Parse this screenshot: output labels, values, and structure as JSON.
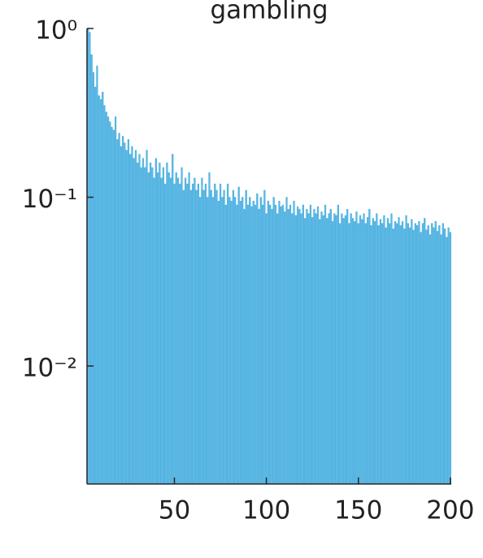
{
  "chart_data": {
    "type": "bar",
    "title": "gambling",
    "log_y": true,
    "color": "#5ab9e6",
    "x": [
      3,
      4,
      5,
      6,
      7,
      8,
      9,
      10,
      11,
      12,
      13,
      14,
      15,
      16,
      17,
      18,
      19,
      20,
      21,
      22,
      23,
      24,
      25,
      26,
      27,
      28,
      29,
      30,
      31,
      32,
      33,
      34,
      35,
      36,
      37,
      38,
      39,
      40,
      41,
      42,
      43,
      44,
      45,
      46,
      47,
      48,
      49,
      50,
      51,
      52,
      53,
      54,
      55,
      56,
      57,
      58,
      59,
      60,
      61,
      62,
      63,
      64,
      65,
      66,
      67,
      68,
      69,
      70,
      71,
      72,
      73,
      74,
      75,
      76,
      77,
      78,
      79,
      80,
      81,
      82,
      83,
      84,
      85,
      86,
      87,
      88,
      89,
      90,
      91,
      92,
      93,
      94,
      95,
      96,
      97,
      98,
      99,
      100,
      101,
      102,
      103,
      104,
      105,
      106,
      107,
      108,
      109,
      110,
      111,
      112,
      113,
      114,
      115,
      116,
      117,
      118,
      119,
      120,
      121,
      122,
      123,
      124,
      125,
      126,
      127,
      128,
      129,
      130,
      131,
      132,
      133,
      134,
      135,
      136,
      137,
      138,
      139,
      140,
      141,
      142,
      143,
      144,
      145,
      146,
      147,
      148,
      149,
      150,
      151,
      152,
      153,
      154,
      155,
      156,
      157,
      158,
      159,
      160,
      161,
      162,
      163,
      164,
      165,
      166,
      167,
      168,
      169,
      170,
      171,
      172,
      173,
      174,
      175,
      176,
      177,
      178,
      179,
      180,
      181,
      182,
      183,
      184,
      185,
      186,
      187,
      188,
      189,
      190,
      191,
      192,
      193,
      194,
      195,
      196,
      197,
      198,
      199,
      200
    ],
    "values": [
      1.0,
      0.95,
      0.7,
      0.55,
      0.45,
      0.6,
      0.4,
      0.38,
      0.42,
      0.35,
      0.32,
      0.3,
      0.28,
      0.26,
      0.25,
      0.3,
      0.22,
      0.24,
      0.2,
      0.23,
      0.21,
      0.19,
      0.22,
      0.18,
      0.2,
      0.17,
      0.19,
      0.16,
      0.18,
      0.15,
      0.17,
      0.15,
      0.19,
      0.14,
      0.16,
      0.15,
      0.13,
      0.17,
      0.14,
      0.16,
      0.13,
      0.15,
      0.12,
      0.16,
      0.14,
      0.13,
      0.18,
      0.12,
      0.14,
      0.13,
      0.12,
      0.15,
      0.11,
      0.13,
      0.12,
      0.14,
      0.11,
      0.12,
      0.13,
      0.11,
      0.12,
      0.1,
      0.13,
      0.11,
      0.12,
      0.1,
      0.14,
      0.11,
      0.1,
      0.12,
      0.11,
      0.095,
      0.12,
      0.1,
      0.11,
      0.09,
      0.12,
      0.1,
      0.095,
      0.11,
      0.1,
      0.09,
      0.115,
      0.095,
      0.1,
      0.085,
      0.11,
      0.09,
      0.1,
      0.088,
      0.095,
      0.09,
      0.105,
      0.085,
      0.1,
      0.09,
      0.11,
      0.08,
      0.095,
      0.09,
      0.085,
      0.1,
      0.09,
      0.08,
      0.095,
      0.088,
      0.09,
      0.082,
      0.1,
      0.085,
      0.09,
      0.08,
      0.095,
      0.078,
      0.088,
      0.085,
      0.08,
      0.09,
      0.075,
      0.085,
      0.08,
      0.09,
      0.076,
      0.085,
      0.08,
      0.088,
      0.074,
      0.082,
      0.078,
      0.09,
      0.075,
      0.08,
      0.085,
      0.072,
      0.08,
      0.078,
      0.09,
      0.07,
      0.08,
      0.075,
      0.078,
      0.085,
      0.07,
      0.08,
      0.075,
      0.072,
      0.082,
      0.07,
      0.078,
      0.074,
      0.08,
      0.07,
      0.076,
      0.085,
      0.068,
      0.075,
      0.072,
      0.08,
      0.068,
      0.074,
      0.07,
      0.078,
      0.066,
      0.075,
      0.07,
      0.08,
      0.065,
      0.072,
      0.07,
      0.076,
      0.068,
      0.072,
      0.065,
      0.078,
      0.07,
      0.066,
      0.074,
      0.064,
      0.07,
      0.068,
      0.072,
      0.062,
      0.07,
      0.075,
      0.064,
      0.068,
      0.06,
      0.07,
      0.066,
      0.072,
      0.063,
      0.068,
      0.06,
      0.07,
      0.065,
      0.058,
      0.066,
      0.062
    ],
    "xlim": [
      2.5,
      200.5
    ],
    "xticks": [
      50,
      100,
      150,
      200
    ],
    "ylim": [
      0.002,
      1
    ],
    "yticks": [
      {
        "value": 1,
        "label": "10⁰"
      },
      {
        "value": 0.1,
        "label": "10⁻¹"
      },
      {
        "value": 0.01,
        "label": "10⁻²"
      }
    ]
  }
}
